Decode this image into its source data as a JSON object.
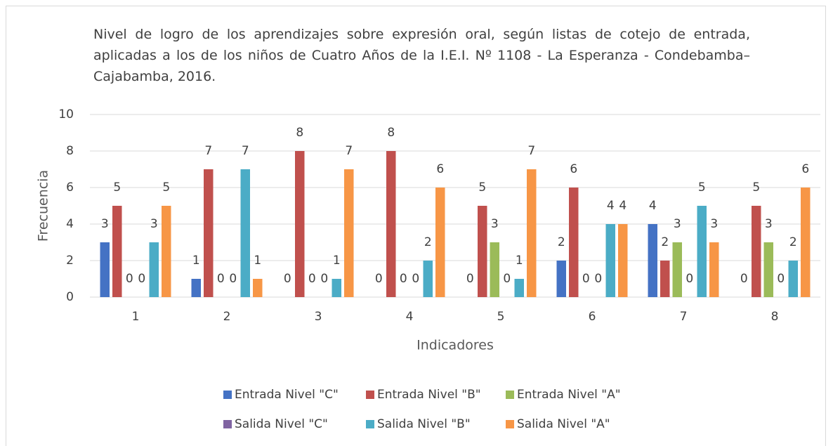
{
  "chart_data": {
    "type": "bar",
    "title": "Nivel de logro de los aprendizajes sobre expresión oral, según listas de cotejo de entrada, aplicadas a los de los niños de Cuatro Años de la I.E.I. Nº 1108 - La Esperanza - Condebamba– Cajabamba, 2016.",
    "x_label": "Indicadores",
    "y_label": "Frecuencia",
    "categories": [
      "1",
      "2",
      "3",
      "4",
      "5",
      "6",
      "7",
      "8"
    ],
    "series": [
      {
        "name": "Entrada Nivel \"C\"",
        "color": "#4472c4",
        "values": [
          3,
          1,
          0,
          0,
          0,
          2,
          4,
          0
        ]
      },
      {
        "name": "Entrada Nivel \"B\"",
        "color": "#c0504d",
        "values": [
          5,
          7,
          8,
          8,
          5,
          6,
          2,
          5
        ]
      },
      {
        "name": "Entrada Nivel \"A\"",
        "color": "#9bbb59",
        "values": [
          0,
          0,
          0,
          0,
          3,
          0,
          3,
          3
        ]
      },
      {
        "name": "Salida Nivel \"C\"",
        "color": "#8064a2",
        "values": [
          0,
          0,
          0,
          0,
          0,
          0,
          0,
          0
        ]
      },
      {
        "name": "Salida Nivel \"B\"",
        "color": "#4bacc6",
        "values": [
          3,
          7,
          1,
          2,
          1,
          4,
          5,
          2
        ]
      },
      {
        "name": "Salida Nivel \"A\"",
        "color": "#f79646",
        "values": [
          5,
          1,
          7,
          6,
          7,
          4,
          3,
          6
        ]
      }
    ],
    "ylim": [
      0,
      10
    ],
    "yticks": [
      0,
      2,
      4,
      6,
      8,
      10
    ],
    "grid": true,
    "legend": "bottom"
  }
}
